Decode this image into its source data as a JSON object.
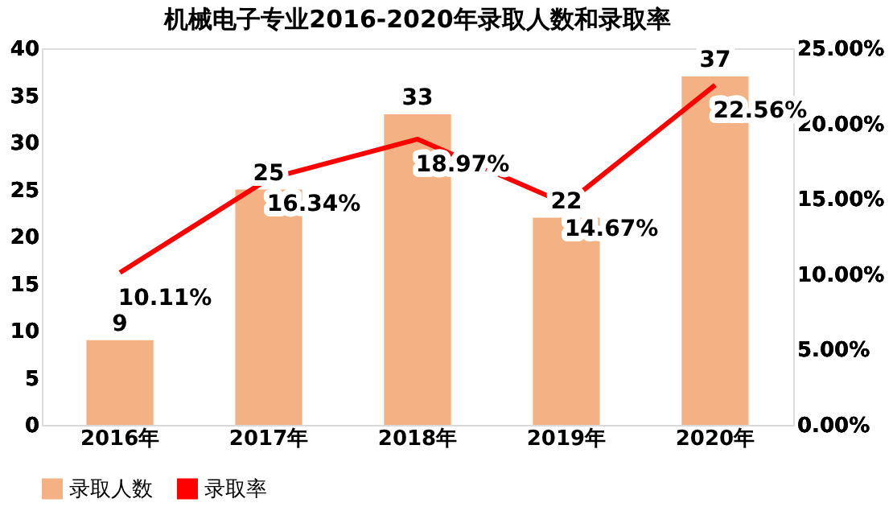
{
  "chart_data": {
    "type": "bar",
    "title": "机械电子专业2016-2020年录取人数和录取率",
    "categories": [
      "2016年",
      "2017年",
      "2018年",
      "2019年",
      "2020年"
    ],
    "series": [
      {
        "name": "录取人数",
        "type": "bar",
        "color": "#f4b183",
        "values": [
          9,
          25,
          33,
          22,
          37
        ]
      },
      {
        "name": "录取率",
        "type": "line",
        "axis": "y2",
        "color": "#ff0000",
        "values": [
          10.11,
          16.34,
          18.97,
          14.67,
          22.56
        ],
        "value_labels": [
          "10.11%",
          "16.34%",
          "18.97%",
          "14.67%",
          "22.56%"
        ]
      }
    ],
    "ylim": [
      0,
      40
    ],
    "yticks": [
      0,
      5,
      10,
      15,
      20,
      25,
      30,
      35,
      40
    ],
    "y2lim": [
      0,
      25
    ],
    "y2ticks": [
      {
        "value": 0,
        "label": "0.00%"
      },
      {
        "value": 5,
        "label": "5.00%"
      },
      {
        "value": 10,
        "label": "10.00%"
      },
      {
        "value": 15,
        "label": "15.00%"
      },
      {
        "value": 20,
        "label": "20.00%"
      },
      {
        "value": 25,
        "label": "25.00%"
      }
    ],
    "data_labels": true,
    "legend": "bottom",
    "grid": false,
    "marker": "none",
    "line_style": "solid"
  }
}
